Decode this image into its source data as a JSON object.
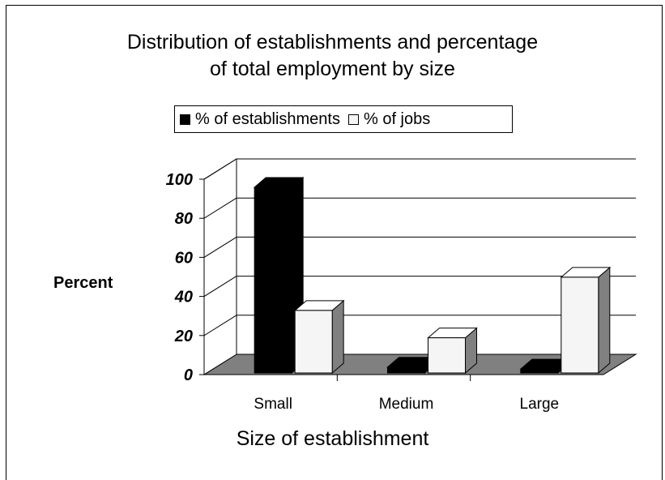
{
  "chart_data": {
    "type": "bar",
    "title_lines": [
      "Distribution of establishments and percentage",
      "of total employment by size"
    ],
    "categories": [
      "Small",
      "Medium",
      "Large"
    ],
    "series": [
      {
        "name": "% of establishments",
        "values": [
          95,
          3,
          2
        ],
        "color": "#000000"
      },
      {
        "name": "% of jobs",
        "values": [
          32,
          18,
          49
        ],
        "color": "#f5f5f5"
      }
    ],
    "xlabel": "Size of establishment",
    "ylabel": "Percent",
    "ylim": [
      0,
      100
    ],
    "yticks": [
      "0",
      "20",
      "40",
      "60",
      "80",
      "100"
    ],
    "grid": true,
    "legend_position": "top",
    "floor_color": "#808080",
    "bar_side_color": "#808080"
  }
}
